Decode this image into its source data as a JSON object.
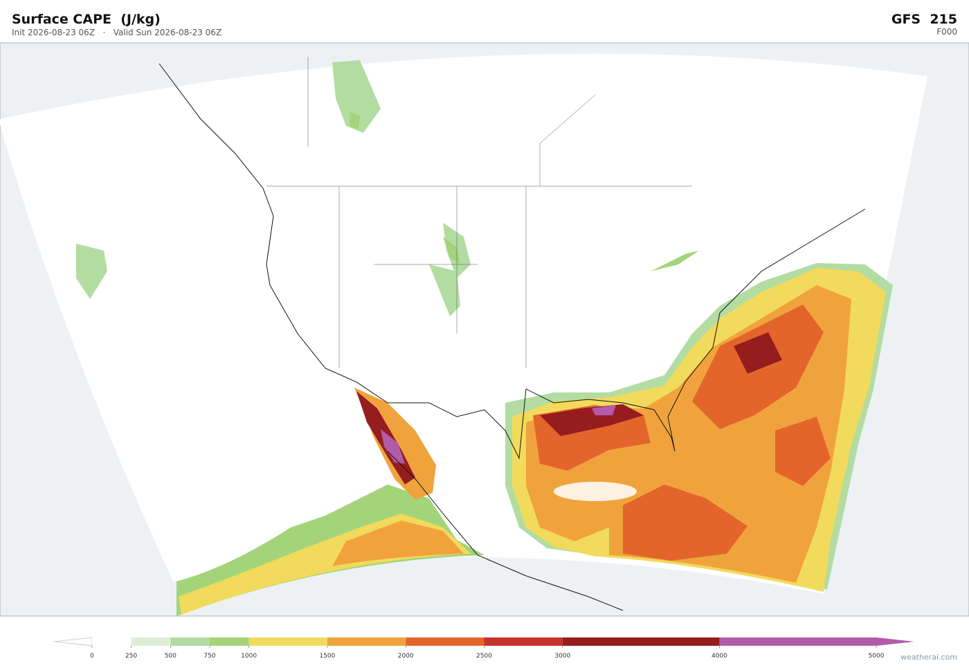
{
  "header": {
    "title": "Surface CAPE  (J/kg)",
    "subtitle": "Init 2026-08-23 06Z   ·   Valid Sun 2026-08-23 06Z",
    "model": "GFS  215",
    "forecast_hour": "F000"
  },
  "colorbar": {
    "range": [
      0,
      5000
    ],
    "ticks": [
      0,
      250,
      500,
      750,
      1000,
      1500,
      2000,
      2500,
      3000,
      4000,
      5000
    ],
    "colors": [
      "#ffffff",
      "#dcefd5",
      "#b3dca2",
      "#a4d47a",
      "#f2da5c",
      "#f0a33d",
      "#e3652c",
      "#c6332a",
      "#951d1e",
      "#b25ba8"
    ],
    "extend_colors": [
      "#ffffff",
      "#b25ba8"
    ]
  },
  "footer": {
    "watermark": "weatherai.com"
  }
}
